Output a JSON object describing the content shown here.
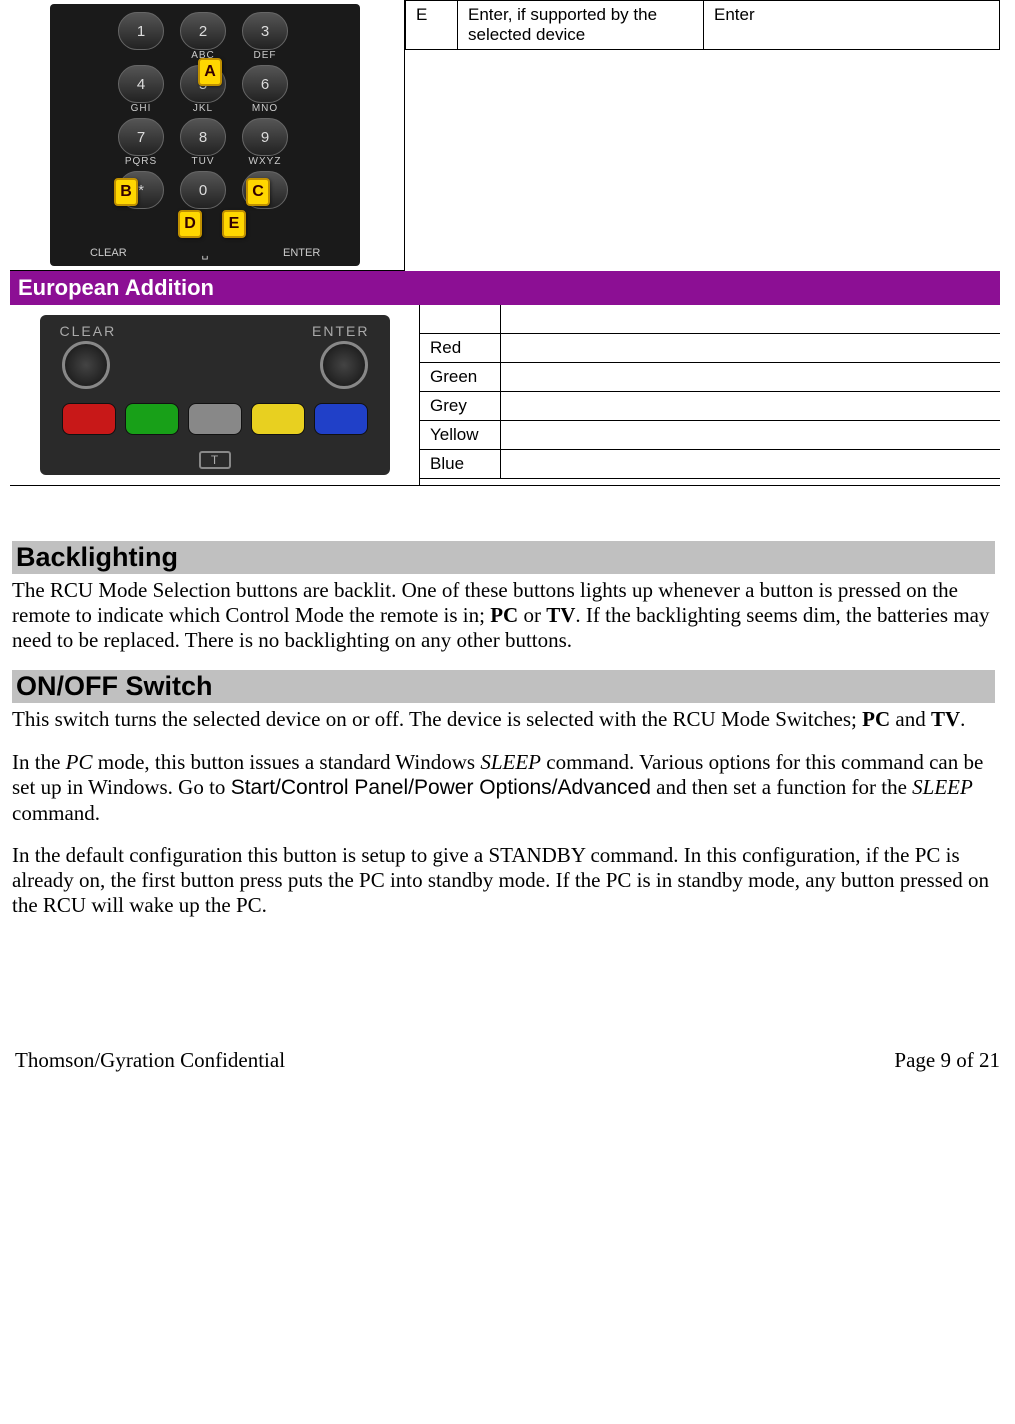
{
  "topTable": {
    "col1": "E",
    "col2_italic": "Enter",
    "col2_rest": ", if supported by the selected device",
    "col3": "Enter"
  },
  "europeanHeader": "European Addition",
  "remote": {
    "clear": "CLEAR",
    "enter": "ENTER",
    "abc": "ABC",
    "def": "DEF",
    "ghi": "GHI",
    "jkl": "JKL",
    "mno": "MNO",
    "pqrs": "PQRS",
    "tuv": "TUV",
    "wxyz": "WXYZ",
    "markerA": "A",
    "markerB": "B",
    "markerC": "C",
    "markerD": "D",
    "markerE": "E",
    "space": "␣"
  },
  "eurRemote": {
    "clear": "CLEAR",
    "enter": "ENTER",
    "t": "T",
    "buttonColors": [
      "#c81818",
      "#18a018",
      "#888888",
      "#e8d020",
      "#2040c8"
    ]
  },
  "colorRows": [
    "Red",
    "Green",
    "Grey",
    "Yellow",
    "Blue"
  ],
  "sections": {
    "backlighting": {
      "title": "Backlighting",
      "p1_a": "The RCU Mode Selection buttons are backlit.  One of these buttons lights up whenever a button is pressed on the remote to indicate which Control Mode the remote is in; ",
      "p1_b1": "PC",
      "p1_b": " or ",
      "p1_b2": "TV",
      "p1_c": ".  If the backlighting seems dim, the batteries may need to be replaced.  There is no backlighting on any other buttons."
    },
    "onoff": {
      "title": "ON/OFF Switch",
      "p1_a": "This switch turns the selected device on or off.  The device is selected with the RCU Mode Switches; ",
      "p1_b1": "PC",
      "p1_b": " and ",
      "p1_b2": "TV",
      "p1_c": ".",
      "p2_a": "In the ",
      "p2_i1": "PC",
      "p2_b": " mode, this button issues a standard Windows ",
      "p2_i2": "SLEEP",
      "p2_c": " command.  Various options for this command can be set up in Windows. Go to ",
      "p2_sans": "Start/Control Panel/Power Options/Advanced",
      "p2_d": " and then set a function for the ",
      "p2_i3": "SLEEP",
      "p2_e": " command.",
      "p3": "In the default configuration this button is setup to give a STANDBY command.  In this configuration, if the PC is already on, the first button press puts the PC into standby mode.   If the PC is in standby mode, any button pressed on the RCU will wake up the PC."
    }
  },
  "footer": {
    "left": "Thomson/Gyration Confidential",
    "right": "Page 9 of 21"
  }
}
